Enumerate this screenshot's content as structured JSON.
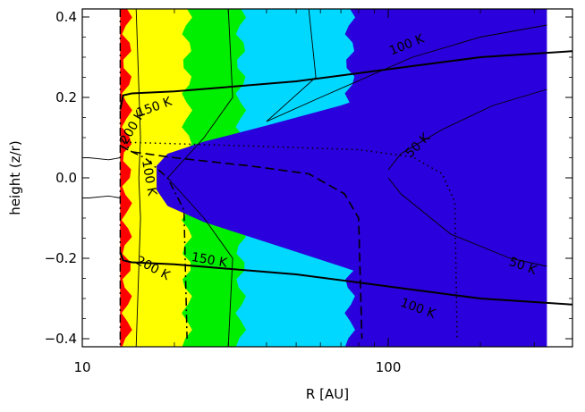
{
  "chart_data": {
    "type": "contour",
    "xlabel": "R [AU]",
    "ylabel": "height (z/r)",
    "xscale": "log",
    "xlim": [
      10,
      400
    ],
    "ylim": [
      -0.42,
      0.42
    ],
    "x_ticks": [
      {
        "value": 10,
        "label": "10"
      },
      {
        "value": 100,
        "label": "100"
      }
    ],
    "y_ticks": [
      {
        "value": -0.4,
        "label": "−0.4"
      },
      {
        "value": -0.2,
        "label": "−0.2"
      },
      {
        "value": 0.0,
        "label": "0.0"
      },
      {
        "value": 0.2,
        "label": "0.2"
      },
      {
        "value": 0.4,
        "label": "0.4"
      }
    ],
    "temperature_zones": [
      {
        "name": "hottest",
        "color": "#ff0000",
        "r_outer": 14.0
      },
      {
        "name": "hot",
        "color": "#ffff00",
        "r_outer": 22.0
      },
      {
        "name": "warm",
        "color": "#00ee00",
        "r_outer": 33.0
      },
      {
        "name": "cool",
        "color": "#00d8ff",
        "r_outer": 75.0
      },
      {
        "name": "cold",
        "color": "#2a00dc"
      }
    ],
    "inner_edge_r": 13.3,
    "contour_labels": [
      {
        "text": "100 K",
        "r": 115,
        "z": 0.33,
        "angle": -22
      },
      {
        "text": "150 K",
        "r": 17.2,
        "z": 0.175,
        "angle": -20
      },
      {
        "text": "200 K",
        "r": 14.6,
        "z": 0.125,
        "angle": -60
      },
      {
        "text": "100 K",
        "r": 16.5,
        "z": 0.0,
        "angle": 80
      },
      {
        "text": "50 K",
        "r": 125,
        "z": 0.08,
        "angle": -45
      },
      {
        "text": "200 K",
        "r": 17.0,
        "z": -0.225,
        "angle": 28
      },
      {
        "text": "150 K",
        "r": 26.0,
        "z": -0.205,
        "angle": 10
      },
      {
        "text": "50 K",
        "r": 275,
        "z": -0.22,
        "angle": 20
      },
      {
        "text": "100 K",
        "r": 125,
        "z": -0.325,
        "angle": 20
      }
    ],
    "surface_curves": [
      {
        "name": "upper-surface",
        "style": "solid-thick",
        "points": [
          [
            13.3,
            0.17
          ],
          [
            13.6,
            0.205
          ],
          [
            14.5,
            0.21
          ],
          [
            20,
            0.215
          ],
          [
            50,
            0.24
          ],
          [
            100,
            0.27
          ],
          [
            200,
            0.3
          ],
          [
            400,
            0.315
          ]
        ]
      },
      {
        "name": "lower-surface",
        "style": "solid-thick",
        "points": [
          [
            13.3,
            -0.185
          ],
          [
            13.6,
            -0.205
          ],
          [
            14.5,
            -0.21
          ],
          [
            20,
            -0.215
          ],
          [
            50,
            -0.24
          ],
          [
            100,
            -0.27
          ],
          [
            200,
            -0.3
          ],
          [
            400,
            -0.315
          ]
        ]
      },
      {
        "name": "dotted-boundary",
        "style": "dotted",
        "points": [
          [
            13.3,
            0.09
          ],
          [
            14.5,
            0.088
          ],
          [
            20,
            0.085
          ],
          [
            40,
            0.078
          ],
          [
            80,
            0.07
          ],
          [
            120,
            0.052
          ],
          [
            150,
            0.01
          ],
          [
            165,
            -0.06
          ],
          [
            168,
            -0.4
          ]
        ]
      },
      {
        "name": "dashed-boundary",
        "style": "dashed",
        "points": [
          [
            13.3,
            0.08
          ],
          [
            14.5,
            0.065
          ],
          [
            20,
            0.05
          ],
          [
            35,
            0.03
          ],
          [
            55,
            0.01
          ],
          [
            72,
            -0.04
          ],
          [
            80,
            -0.1
          ],
          [
            82,
            -0.4
          ]
        ]
      },
      {
        "name": "dashdot-boundary",
        "style": "dashdot",
        "points": [
          [
            13.3,
            0.1
          ],
          [
            14.5,
            0.065
          ],
          [
            16,
            0.05
          ],
          [
            19,
            0.0
          ],
          [
            21.5,
            -0.08
          ],
          [
            22,
            -0.4
          ]
        ]
      }
    ]
  }
}
